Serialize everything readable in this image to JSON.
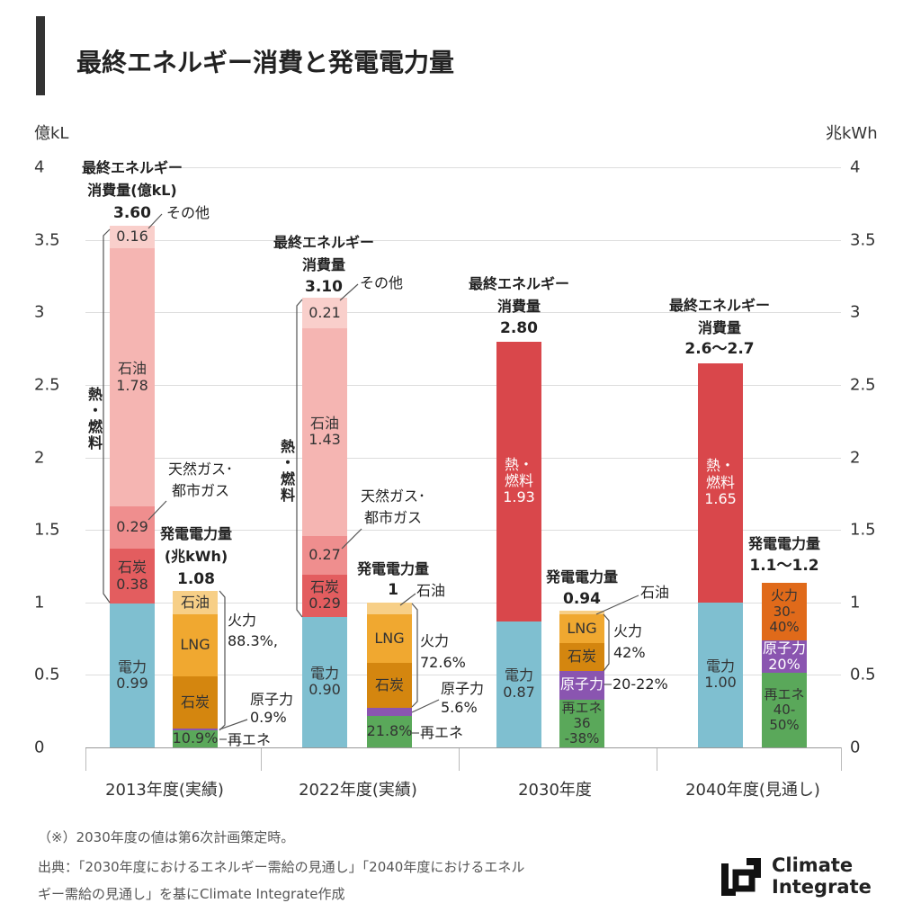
{
  "title": "最終エネルギー消費と発電電力量",
  "footnotes": [
    "（※）2030年度の値は第6次計画策定時。",
    "出典：「2030年度におけるエネルギー需給の見通し」「2040年度におけるエネル",
    "ギー需給の見通し」を基にClimate Integrate作成"
  ],
  "logo": {
    "line1": "Climate",
    "line2": "Integrate"
  },
  "chart_data": {
    "type": "bar",
    "stacked": true,
    "yleft_label": "億kL",
    "yright_label": "兆kWh",
    "ylim": [
      0,
      4
    ],
    "yticks": [
      "0",
      "0.5",
      "1",
      "1.5",
      "2",
      "2.5",
      "3",
      "3.5",
      "4"
    ],
    "grid": true,
    "categories": [
      "2013年度(実績)",
      "2022年度(実績)",
      "2030年度",
      "2040年度(見通し)"
    ],
    "bars": [
      {
        "category": "2013年度(実績)",
        "kind": "最終エネルギー消費量",
        "segments": [
          {
            "name": "電力",
            "value": 0.99,
            "label": "電力\n0.99",
            "color": "#7fbfd0"
          },
          {
            "name": "石炭",
            "value": 0.38,
            "label": "石炭\n0.38",
            "color": "#e35d5f"
          },
          {
            "name": "天然ガス・都市ガス",
            "value": 0.29,
            "label": "0.29",
            "color": "#ef8e8e"
          },
          {
            "name": "石油",
            "value": 1.78,
            "label": "石油\n1.78",
            "color": "#f5b5b2"
          },
          {
            "name": "その他",
            "value": 0.16,
            "label": "0.16",
            "color": "#f9cfcb"
          }
        ]
      },
      {
        "category": "2013年度(実績)",
        "kind": "発電電力量",
        "segments": [
          {
            "name": "再エネ",
            "value": 0.12,
            "label": "10.9%",
            "color": "#5aa85a"
          },
          {
            "name": "原子力",
            "value": 0.01,
            "label": "",
            "color": "#8a55b0"
          },
          {
            "name": "石炭",
            "value": 0.36,
            "label": "石炭",
            "color": "#d4860f"
          },
          {
            "name": "LNG",
            "value": 0.43,
            "label": "LNG",
            "color": "#f0a830"
          },
          {
            "name": "石油",
            "value": 0.16,
            "label": "石油",
            "color": "#f7cf87"
          }
        ]
      },
      {
        "category": "2022年度(実績)",
        "kind": "最終エネルギー消費量",
        "segments": [
          {
            "name": "電力",
            "value": 0.9,
            "label": "電力\n0.90",
            "color": "#7fbfd0"
          },
          {
            "name": "石炭",
            "value": 0.29,
            "label": "石炭\n0.29",
            "color": "#e35d5f"
          },
          {
            "name": "天然ガス・都市ガス",
            "value": 0.27,
            "label": "0.27",
            "color": "#ef8e8e"
          },
          {
            "name": "石油",
            "value": 1.43,
            "label": "石油\n1.43",
            "color": "#f5b5b2"
          },
          {
            "name": "その他",
            "value": 0.21,
            "label": "0.21",
            "color": "#f9cfcb"
          }
        ]
      },
      {
        "category": "2022年度(実績)",
        "kind": "発電電力量",
        "segments": [
          {
            "name": "再エネ",
            "value": 0.218,
            "label": "21.8%",
            "color": "#5aa85a"
          },
          {
            "name": "原子力",
            "value": 0.056,
            "label": "",
            "color": "#8a55b0"
          },
          {
            "name": "石炭",
            "value": 0.31,
            "label": "石炭",
            "color": "#d4860f"
          },
          {
            "name": "LNG",
            "value": 0.335,
            "label": "LNG",
            "color": "#f0a830"
          },
          {
            "name": "石油",
            "value": 0.081,
            "label": "",
            "color": "#f7cf87"
          }
        ]
      },
      {
        "category": "2030年度",
        "kind": "最終エネルギー消費量",
        "segments": [
          {
            "name": "電力",
            "value": 0.87,
            "label": "電力\n0.87",
            "color": "#7fbfd0"
          },
          {
            "name": "熱・燃料",
            "value": 1.93,
            "label": "熱・\n燃料\n1.93",
            "color": "#d9474b",
            "light": true
          }
        ]
      },
      {
        "category": "2030年度",
        "kind": "発電電力量",
        "segments": [
          {
            "name": "再エネ",
            "value": 0.33,
            "label": "再エネ\n36\n-38%",
            "color": "#5aa85a"
          },
          {
            "name": "原子力",
            "value": 0.2,
            "label": "原子力",
            "color": "#8a55b0",
            "light": true
          },
          {
            "name": "石炭",
            "value": 0.19,
            "label": "石炭",
            "color": "#d4860f"
          },
          {
            "name": "LNG",
            "value": 0.2,
            "label": "LNG",
            "color": "#f0a830"
          },
          {
            "name": "石油",
            "value": 0.02,
            "label": "",
            "color": "#f7cf87"
          }
        ]
      },
      {
        "category": "2040年度(見通し)",
        "kind": "最終エネルギー消費量",
        "segments": [
          {
            "name": "電力",
            "value": 1.0,
            "label": "電力\n1.00",
            "color": "#7fbfd0"
          },
          {
            "name": "熱・燃料",
            "value": 1.65,
            "label": "熱・\n燃料\n1.65",
            "color": "#d9474b",
            "light": true
          }
        ]
      },
      {
        "category": "2040年度(見通し)",
        "kind": "発電電力量",
        "segments": [
          {
            "name": "再エネ",
            "value": 0.515,
            "label": "再エネ\n40-\n50%",
            "color": "#5aa85a"
          },
          {
            "name": "原子力",
            "value": 0.22,
            "label": "原子力\n20%",
            "color": "#8a55b0",
            "light": true
          },
          {
            "name": "火力",
            "value": 0.4,
            "label": "火力\n30-\n40%",
            "color": "#e06a1a"
          }
        ]
      }
    ],
    "annotations": {
      "a2013": {
        "t1": "最終エネルギー",
        "t2": "消費量(億kL)",
        "total": "3.60",
        "other": "その他",
        "heat": "熱・燃料",
        "gas1": "天然ガス･",
        "gas2": "都市ガス",
        "p1": "発電電力量",
        "p2": "(兆kWh)",
        "ptotal": "1.08",
        "fire": "火力",
        "firepct": "88.3%,",
        "nuc": "原子力",
        "nucpct": "0.9%",
        "ren": "再エネ"
      },
      "a2022": {
        "t1": "最終エネルギー",
        "t2": "消費量",
        "total": "3.10",
        "other": "その他",
        "heat": "熱・燃料",
        "gas1": "天然ガス･",
        "gas2": "都市ガス",
        "p1": "発電電力量",
        "ptotal": "1",
        "oil": "石油",
        "fire": "火力",
        "firepct": "72.6%",
        "nuc": "原子力",
        "nucpct": "5.6%",
        "ren": "再エネ"
      },
      "a2030": {
        "t1": "最終エネルギー",
        "t2": "消費量",
        "total": "2.80",
        "p1": "発電電力量",
        "ptotal": "0.94",
        "oil": "石油",
        "fire": "火力",
        "firepct": "42%",
        "nucpct": "20-22%"
      },
      "a2040": {
        "t1": "最終エネルギー",
        "t2": "消費量",
        "total": "2.6〜2.7",
        "p1": "発電電力量",
        "ptotal": "1.1〜1.2"
      }
    }
  }
}
